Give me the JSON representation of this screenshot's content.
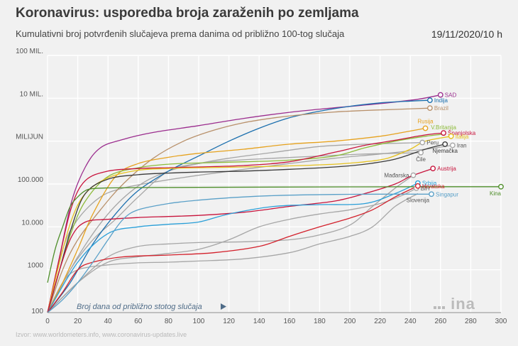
{
  "header": {
    "title": "Koronavirus: usporedba broja zaraženih po zemljama",
    "subtitle": "Kumulativni broj potvrđenih slučajeva prema danima od približno 100-tog slučaja",
    "date": "19/11/2020/10 h"
  },
  "footer": {
    "source": "Izvor: www.worldometers.info, www.coronavirus-updates.live"
  },
  "logo": {
    "text": "ina"
  },
  "chart_data": {
    "type": "line",
    "title": "Koronavirus: usporedba broja zaraženih po zemljama",
    "xlabel": "Broj dana od približno stotog slučaja",
    "ylabel": "",
    "yscale": "log",
    "xlim": [
      0,
      300
    ],
    "ylim": [
      100,
      100000000
    ],
    "xticks": [
      0,
      20,
      40,
      60,
      80,
      100,
      120,
      140,
      160,
      180,
      200,
      220,
      240,
      260,
      280,
      300
    ],
    "yticks": [
      {
        "value": 100,
        "label": "100"
      },
      {
        "value": 1000,
        "label": "1000"
      },
      {
        "value": 10000,
        "label": "10.000"
      },
      {
        "value": 100000,
        "label": "100.000"
      },
      {
        "value": 1000000,
        "label": "MILIJUN"
      },
      {
        "value": 10000000,
        "label": "10 MIL."
      },
      {
        "value": 100000000,
        "label": "100 MIL."
      }
    ],
    "series": [
      {
        "name": "SAD",
        "color": "#9b2d8e",
        "end_marker": true,
        "label_pos": "right",
        "x": [
          0,
          8,
          16,
          25,
          35,
          50,
          70,
          100,
          130,
          160,
          190,
          220,
          245,
          260
        ],
        "y": [
          100,
          2000,
          40000,
          250000,
          700000,
          1100000,
          1600000,
          2300000,
          3400000,
          4700000,
          6000000,
          7500000,
          9500000,
          12000000
        ]
      },
      {
        "name": "Indija",
        "color": "#1b6fae",
        "end_marker": true,
        "label_pos": "right",
        "x": [
          0,
          15,
          30,
          45,
          60,
          80,
          100,
          120,
          140,
          160,
          180,
          200,
          220,
          240,
          253
        ],
        "y": [
          100,
          500,
          4000,
          20000,
          70000,
          200000,
          450000,
          1000000,
          2000000,
          3500000,
          5000000,
          6500000,
          7800000,
          8600000,
          9000000
        ]
      },
      {
        "name": "Brazil",
        "color": "#b8906a",
        "end_marker": true,
        "label_pos": "right",
        "x": [
          0,
          10,
          20,
          35,
          50,
          70,
          90,
          110,
          130,
          150,
          170,
          190,
          210,
          230,
          253
        ],
        "y": [
          100,
          1000,
          5000,
          25000,
          100000,
          400000,
          1000000,
          1800000,
          2700000,
          3500000,
          4200000,
          4800000,
          5200000,
          5500000,
          5900000
        ]
      },
      {
        "name": "Rusija",
        "color": "#e6a21e",
        "end_marker": true,
        "label_pos": "above",
        "x": [
          0,
          10,
          20,
          30,
          45,
          60,
          80,
          100,
          130,
          160,
          190,
          220,
          235,
          250
        ],
        "y": [
          100,
          500,
          3000,
          20000,
          150000,
          300000,
          420000,
          520000,
          650000,
          850000,
          1000000,
          1300000,
          1600000,
          2000000
        ]
      },
      {
        "name": "V.Britanija",
        "color": "#8dbb3a",
        "end_marker": false,
        "label_pos": "above",
        "x": [
          0,
          8,
          16,
          25,
          40,
          60,
          80,
          100,
          130,
          160,
          190,
          210,
          230,
          250,
          262
        ],
        "y": [
          100,
          1000,
          8000,
          40000,
          150000,
          240000,
          290000,
          310000,
          330000,
          360000,
          450000,
          700000,
          1000000,
          1300000,
          1450000
        ]
      },
      {
        "name": "Španjolska",
        "color": "#c8143c",
        "end_marker": true,
        "label_pos": "right",
        "x": [
          0,
          8,
          16,
          25,
          40,
          60,
          80,
          100,
          130,
          160,
          190,
          210,
          230,
          250,
          262
        ],
        "y": [
          100,
          2000,
          30000,
          120000,
          200000,
          230000,
          240000,
          250000,
          270000,
          330000,
          550000,
          800000,
          1050000,
          1400000,
          1550000
        ]
      },
      {
        "name": "Italija",
        "color": "#e6c21e",
        "end_marker": true,
        "label_pos": "right",
        "x": [
          0,
          8,
          16,
          25,
          40,
          60,
          80,
          100,
          130,
          160,
          190,
          210,
          225,
          240,
          250,
          267
        ],
        "y": [
          100,
          1500,
          15000,
          60000,
          140000,
          210000,
          230000,
          240000,
          250000,
          265000,
          290000,
          330000,
          400000,
          650000,
          1000000,
          1300000
        ]
      },
      {
        "name": "Peru",
        "color": "#a6a6a6",
        "end_marker": true,
        "label_pos": "right",
        "x": [
          0,
          20,
          40,
          60,
          80,
          100,
          120,
          150,
          180,
          210,
          240,
          248
        ],
        "y": [
          100,
          2000,
          20000,
          90000,
          200000,
          300000,
          400000,
          550000,
          750000,
          850000,
          910000,
          930000
        ]
      },
      {
        "name": "Iran",
        "color": "#a6a6a6",
        "end_marker": true,
        "label_pos": "right",
        "x": [
          0,
          10,
          20,
          35,
          50,
          70,
          100,
          130,
          160,
          190,
          220,
          250,
          268
        ],
        "y": [
          100,
          3000,
          15000,
          50000,
          80000,
          110000,
          160000,
          220000,
          300000,
          400000,
          500000,
          650000,
          800000
        ]
      },
      {
        "name": "Njemačka",
        "color": "#3a3a3a",
        "end_marker": true,
        "label_pos": "below",
        "x": [
          0,
          8,
          16,
          25,
          40,
          60,
          80,
          100,
          130,
          160,
          190,
          210,
          230,
          250,
          263
        ],
        "y": [
          100,
          1000,
          10000,
          60000,
          130000,
          165000,
          180000,
          190000,
          200000,
          220000,
          250000,
          290000,
          380000,
          650000,
          850000
        ]
      },
      {
        "name": "Čile",
        "color": "#a6a6a6",
        "end_marker": true,
        "label_pos": "below",
        "x": [
          0,
          15,
          30,
          45,
          60,
          80,
          100,
          120,
          150,
          180,
          210,
          240,
          247
        ],
        "y": [
          100,
          1000,
          5000,
          15000,
          50000,
          200000,
          300000,
          350000,
          400000,
          450000,
          500000,
          530000,
          540000
        ]
      },
      {
        "name": "Mađarska",
        "color": "#a6a6a6",
        "end_marker": true,
        "label_pos": "left",
        "x": [
          0,
          20,
          40,
          60,
          80,
          100,
          130,
          160,
          180,
          200,
          215,
          230,
          242
        ],
        "y": [
          100,
          500,
          2000,
          3500,
          4000,
          4300,
          4500,
          5000,
          6500,
          11000,
          30000,
          80000,
          160000
        ]
      },
      {
        "name": "Austrija",
        "color": "#c8143c",
        "end_marker": true,
        "label_pos": "right",
        "x": [
          0,
          8,
          16,
          25,
          40,
          60,
          80,
          100,
          130,
          160,
          190,
          210,
          230,
          240,
          255
        ],
        "y": [
          100,
          1000,
          6000,
          13000,
          15000,
          16500,
          17500,
          18500,
          22000,
          30000,
          40000,
          60000,
          100000,
          150000,
          230000
        ]
      },
      {
        "name": "Srbija",
        "color": "#2a9fd8",
        "end_marker": true,
        "label_pos": "right",
        "x": [
          0,
          20,
          40,
          60,
          80,
          100,
          120,
          150,
          180,
          210,
          230,
          245
        ],
        "y": [
          100,
          1500,
          7000,
          10000,
          11500,
          13000,
          20000,
          30000,
          33000,
          35000,
          60000,
          105000
        ]
      },
      {
        "name": "Hrvatska",
        "color": "#d3202b",
        "end_marker": true,
        "label_pos": "right",
        "x": [
          0,
          10,
          20,
          30,
          50,
          80,
          110,
          140,
          160,
          180,
          200,
          215,
          230,
          245
        ],
        "y": [
          100,
          300,
          1000,
          1500,
          2000,
          2200,
          2500,
          3500,
          6000,
          10000,
          16000,
          25000,
          50000,
          90000
        ]
      },
      {
        "name": "BiH",
        "color": "#a6a6a6",
        "end_marker": true,
        "label_pos": "right",
        "x": [
          0,
          20,
          40,
          60,
          80,
          100,
          120,
          140,
          160,
          180,
          200,
          220,
          235,
          244
        ],
        "y": [
          100,
          500,
          1500,
          2000,
          2400,
          3000,
          5000,
          10000,
          15000,
          20000,
          25000,
          35000,
          55000,
          80000
        ]
      },
      {
        "name": "Singapur",
        "color": "#5aa0c8",
        "end_marker": true,
        "label_pos": "right",
        "x": [
          0,
          10,
          20,
          30,
          40,
          50,
          60,
          80,
          100,
          130,
          160,
          190,
          220,
          254
        ],
        "y": [
          100,
          200,
          500,
          1500,
          5000,
          15000,
          25000,
          35000,
          42000,
          50000,
          55000,
          57000,
          58000,
          58000
        ]
      },
      {
        "name": "Slovenija",
        "color": "#a6a6a6",
        "end_marker": false,
        "label_pos": "below",
        "x": [
          0,
          10,
          20,
          40,
          60,
          80,
          100,
          130,
          160,
          180,
          200,
          215,
          230,
          245
        ],
        "y": [
          100,
          500,
          1000,
          1300,
          1450,
          1500,
          1600,
          1800,
          2500,
          4000,
          6000,
          10000,
          30000,
          60000
        ]
      },
      {
        "name": "Kina",
        "color": "#4e8e2a",
        "end_marker": true,
        "label_pos": "below",
        "x": [
          0,
          5,
          10,
          15,
          20,
          25,
          30,
          40,
          60,
          100,
          150,
          200,
          250,
          300
        ],
        "y": [
          500,
          3000,
          10000,
          30000,
          50000,
          70000,
          78000,
          81000,
          82500,
          83500,
          85000,
          86000,
          86500,
          86500
        ]
      }
    ]
  }
}
